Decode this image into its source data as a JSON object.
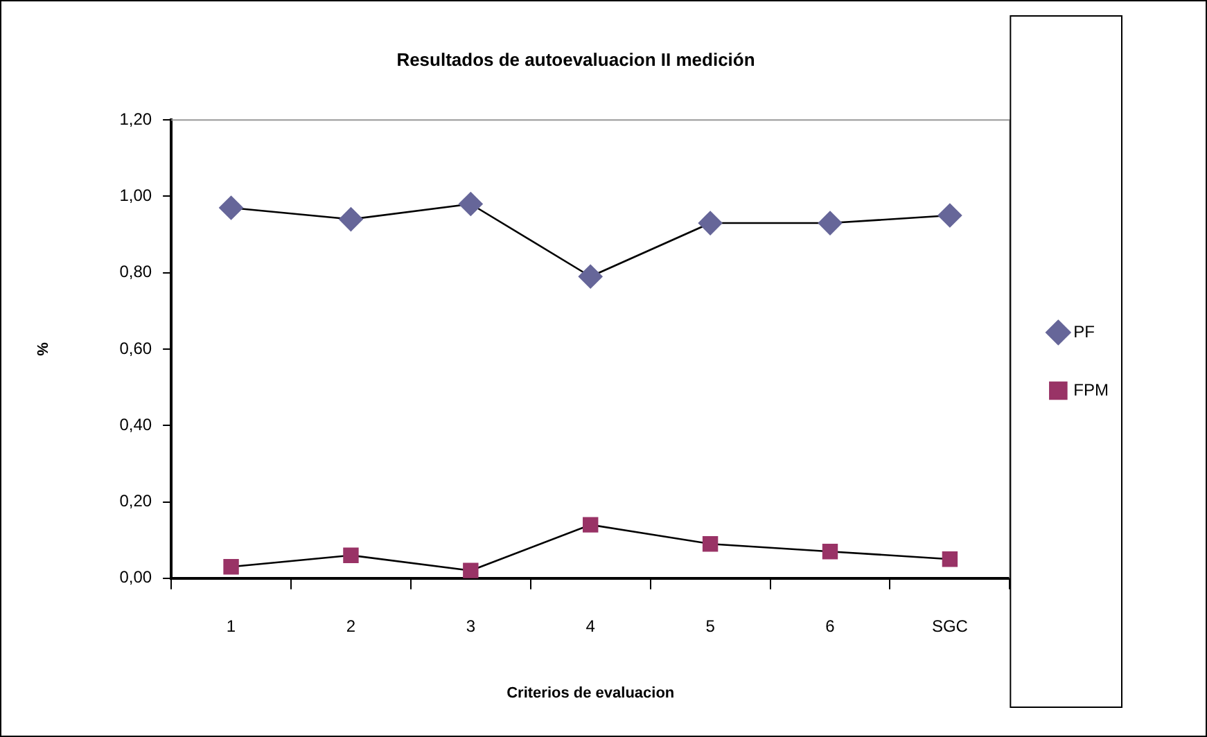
{
  "chart_data": {
    "type": "line",
    "title": "Resultados de autoevaluacion II medición",
    "xlabel": "Criterios de evaluacion",
    "ylabel": "%",
    "categories": [
      "1",
      "2",
      "3",
      "4",
      "5",
      "6",
      "SGC"
    ],
    "series": [
      {
        "name": "PF",
        "color": "#666699",
        "marker": "diamond",
        "values": [
          0.97,
          0.94,
          0.98,
          0.79,
          0.93,
          0.93,
          0.95
        ]
      },
      {
        "name": "FPM",
        "color": "#993366",
        "marker": "square",
        "values": [
          0.03,
          0.06,
          0.02,
          0.14,
          0.09,
          0.07,
          0.05
        ]
      }
    ],
    "ylim": [
      0,
      1.2
    ],
    "yticks": [
      {
        "value": 0,
        "label": "0,00"
      },
      {
        "value": 0.2,
        "label": "0,20"
      },
      {
        "value": 0.4,
        "label": "0,40"
      },
      {
        "value": 0.6,
        "label": "0,60"
      },
      {
        "value": 0.8,
        "label": "0,80"
      },
      {
        "value": 1,
        "label": "1,00"
      },
      {
        "value": 1.2,
        "label": "1,20"
      }
    ],
    "grid": false,
    "legend": "right"
  }
}
